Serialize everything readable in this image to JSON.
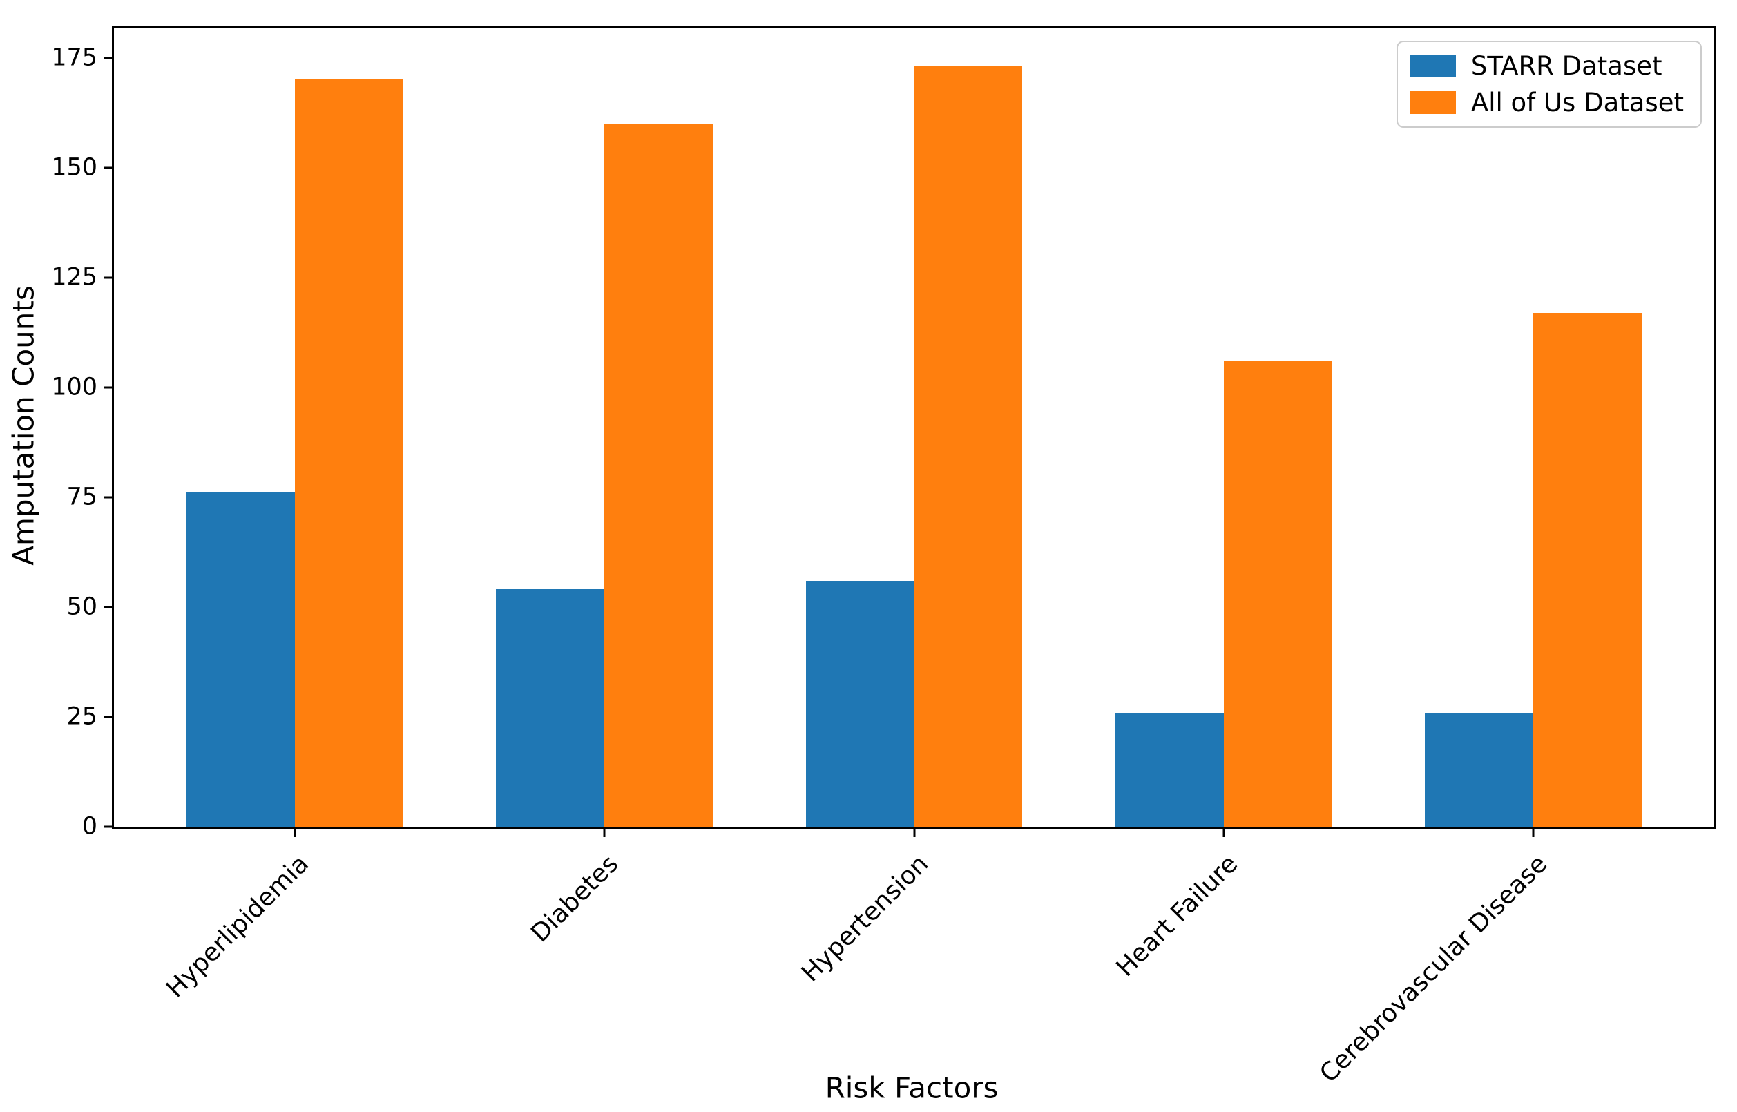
{
  "figure": {
    "background": "#ffffff",
    "spine_color": "#000000"
  },
  "chart_data": {
    "type": "bar",
    "title": "",
    "xlabel": "Risk Factors",
    "ylabel": "Amputation Counts",
    "categories": [
      "Hyperlipidemia",
      "Diabetes",
      "Hypertension",
      "Heart Failure",
      "Cerebrovascular Disease"
    ],
    "series": [
      {
        "name": "STARR Dataset",
        "color": "#1f77b4",
        "values": [
          76,
          54,
          56,
          26,
          26
        ]
      },
      {
        "name": "All of Us Dataset",
        "color": "#ff7f0e",
        "values": [
          170,
          160,
          173,
          106,
          117
        ]
      }
    ],
    "bar_width": 0.35,
    "yticks": [
      0,
      25,
      50,
      75,
      100,
      125,
      150,
      175
    ],
    "ylim": [
      0,
      181.7
    ],
    "xlim": [
      -0.585,
      4.585
    ],
    "grid": false,
    "legend": {
      "position": "top-right",
      "entries": [
        "STARR Dataset",
        "All of Us Dataset"
      ]
    }
  }
}
